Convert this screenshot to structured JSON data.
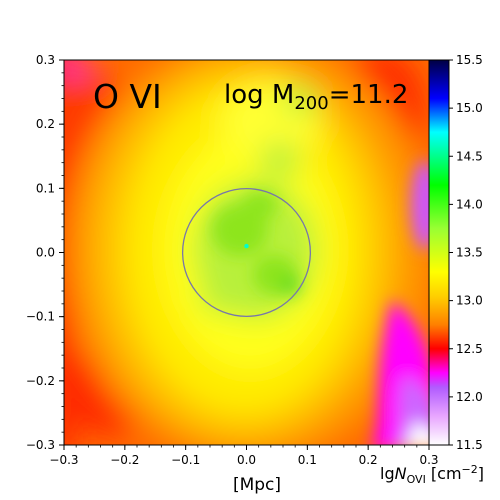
{
  "chart_data": {
    "type": "heatmap",
    "title": "O VI",
    "annotation": {
      "prefix": "log M",
      "subscript": "200",
      "suffix": "=11.2"
    },
    "xlabel": "[Mpc]",
    "xlim": [
      -0.3,
      0.3
    ],
    "ylim": [
      -0.3,
      0.3
    ],
    "x_ticks": [
      -0.3,
      -0.2,
      -0.1,
      0.0,
      0.1,
      0.2,
      0.3
    ],
    "x_tick_labels": [
      "−0.3",
      "−0.2",
      "−0.1",
      "0.0",
      "0.1",
      "0.2",
      "0.3"
    ],
    "y_ticks": [
      -0.3,
      -0.2,
      -0.1,
      0.0,
      0.1,
      0.2,
      0.3
    ],
    "y_tick_labels": [
      "−0.3",
      "−0.2",
      "−0.1",
      "0.0",
      "0.1",
      "0.2",
      "0.3"
    ],
    "colorbar": {
      "label_prefix": "lg",
      "label_symbol": "N",
      "label_subscript": "OVI",
      "label_unit": " [cm",
      "label_exponent": "−2",
      "label_close": "]",
      "range": [
        11.5,
        15.5
      ],
      "ticks": [
        11.5,
        12.0,
        12.5,
        13.0,
        13.5,
        14.0,
        14.5,
        15.0,
        15.5
      ],
      "tick_labels": [
        "11.5",
        "12.0",
        "12.5",
        "13.0",
        "13.5",
        "14.0",
        "14.5",
        "15.0",
        "15.5"
      ],
      "colormap_stops": [
        {
          "value": 11.5,
          "color": "#ffffff"
        },
        {
          "value": 11.8,
          "color": "#e8a6ff"
        },
        {
          "value": 12.1,
          "color": "#b15bff"
        },
        {
          "value": 12.25,
          "color": "#ff00ff"
        },
        {
          "value": 12.5,
          "color": "#ff0000"
        },
        {
          "value": 12.75,
          "color": "#ff8000"
        },
        {
          "value": 13.05,
          "color": "#ffd000"
        },
        {
          "value": 13.3,
          "color": "#ffff00"
        },
        {
          "value": 13.75,
          "color": "#99ff33"
        },
        {
          "value": 14.2,
          "color": "#00ff00"
        },
        {
          "value": 14.75,
          "color": "#00ffff"
        },
        {
          "value": 15.1,
          "color": "#0000ff"
        },
        {
          "value": 15.5,
          "color": "#000044"
        }
      ]
    },
    "virial_circle": {
      "center": [
        0.0,
        0.0
      ],
      "radius": 0.105,
      "color": "#7777aa"
    },
    "central_marker": {
      "center": [
        0.0,
        0.01
      ],
      "color": "#00ffcc"
    },
    "map_description": "column density peaks ~13.8 inside circle, falls to ~12.6 at x-edges, magenta/white region lower-right"
  }
}
